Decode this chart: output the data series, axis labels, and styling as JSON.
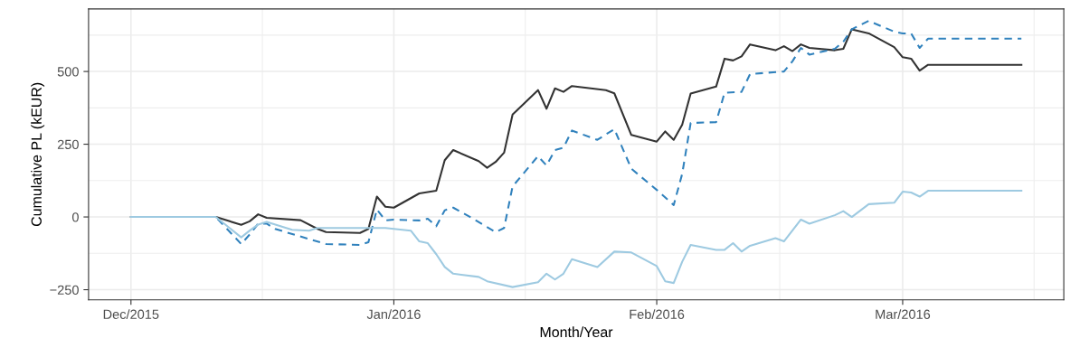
{
  "chart_data": {
    "type": "line",
    "xlabel": "Month/Year",
    "ylabel": "Cumulative PL (kEUR)",
    "xlim": [
      "2015-11-26",
      "2016-03-20"
    ],
    "ylim": [
      -285,
      715
    ],
    "xticks": [
      {
        "value": "2015-12-01",
        "label": "Dec/2015"
      },
      {
        "value": "2015-12-16T12:00",
        "label": null
      },
      {
        "value": "2016-01-01",
        "label": "Jan/2016"
      },
      {
        "value": "2016-01-16T12:00",
        "label": null
      },
      {
        "value": "2016-02-01",
        "label": "Feb/2016"
      },
      {
        "value": "2016-02-15T12:00",
        "label": null
      },
      {
        "value": "2016-03-01",
        "label": "Mar/2016"
      },
      {
        "value": "2016-03-16T12:00",
        "label": null
      }
    ],
    "yticks": [
      {
        "value": -250,
        "label": "−250"
      },
      {
        "value": -125,
        "label": null
      },
      0,
      {
        "value": 125,
        "label": null
      },
      250,
      {
        "value": 375,
        "label": null
      },
      500,
      {
        "value": 625,
        "label": null
      }
    ],
    "grid": true,
    "series": [
      {
        "color": "#333333",
        "line_style": "solid",
        "x": [
          "2015-12-01",
          "2015-12-11",
          "2015-12-14",
          "2015-12-15",
          "2015-12-16",
          "2015-12-17",
          "2015-12-21",
          "2015-12-23",
          "2015-12-24",
          "2015-12-28",
          "2015-12-29",
          "2015-12-30",
          "2015-12-31",
          "2016-01-01",
          "2016-01-04",
          "2016-01-06",
          "2016-01-07",
          "2016-01-08",
          "2016-01-11",
          "2016-01-12",
          "2016-01-13",
          "2016-01-14",
          "2016-01-15",
          "2016-01-18",
          "2016-01-19",
          "2016-01-20",
          "2016-01-21",
          "2016-01-22",
          "2016-01-26",
          "2016-01-27",
          "2016-01-29",
          "2016-02-01",
          "2016-02-02",
          "2016-02-03",
          "2016-02-04",
          "2016-02-05",
          "2016-02-08",
          "2016-02-09",
          "2016-02-10",
          "2016-02-11",
          "2016-02-12",
          "2016-02-15",
          "2016-02-16",
          "2016-02-17",
          "2016-02-18",
          "2016-02-19",
          "2016-02-22",
          "2016-02-23",
          "2016-02-24",
          "2016-02-26",
          "2016-02-29",
          "2016-03-01",
          "2016-03-02",
          "2016-03-03",
          "2016-03-04",
          "2016-03-15"
        ],
        "values": [
          0,
          0,
          -27,
          -15,
          9,
          -3,
          -11,
          -41,
          -52,
          -55,
          -41,
          70,
          35,
          32,
          81,
          90,
          195,
          230,
          192,
          169,
          189,
          221,
          352,
          436,
          372,
          442,
          430,
          450,
          436,
          425,
          282,
          259,
          294,
          265,
          317,
          424,
          448,
          544,
          538,
          552,
          593,
          573,
          587,
          570,
          593,
          581,
          573,
          578,
          645,
          631,
          584,
          549,
          544,
          503,
          523,
          523
        ]
      },
      {
        "color": "#3182bd",
        "line_style": "dashed",
        "x": [
          "2015-12-01",
          "2015-12-11",
          "2015-12-14",
          "2015-12-15",
          "2015-12-16",
          "2015-12-17",
          "2015-12-18",
          "2015-12-22",
          "2015-12-24",
          "2015-12-28",
          "2015-12-29",
          "2015-12-30",
          "2015-12-31",
          "2016-01-01",
          "2016-01-04",
          "2016-01-05",
          "2016-01-06",
          "2016-01-07",
          "2016-01-08",
          "2016-01-10",
          "2016-01-13",
          "2016-01-14",
          "2016-01-15",
          "2016-01-18",
          "2016-01-19",
          "2016-01-20",
          "2016-01-21",
          "2016-01-22",
          "2016-01-25",
          "2016-01-27",
          "2016-01-29",
          "2016-02-01",
          "2016-02-03",
          "2016-02-04",
          "2016-02-05",
          "2016-02-08",
          "2016-02-09",
          "2016-02-11",
          "2016-02-12",
          "2016-02-16",
          "2016-02-17",
          "2016-02-18",
          "2016-02-19",
          "2016-02-22",
          "2016-02-23",
          "2016-02-24",
          "2016-02-26",
          "2016-02-29",
          "2016-03-01",
          "2016-03-02",
          "2016-03-03",
          "2016-03-04",
          "2016-03-15"
        ],
        "values": [
          0,
          0,
          -93,
          -60,
          -23,
          -23,
          -41,
          -76,
          -93,
          -96,
          -87,
          26,
          -12,
          -9,
          -12,
          -6,
          -32,
          23,
          32,
          0,
          -52,
          -38,
          105,
          209,
          177,
          230,
          238,
          297,
          265,
          302,
          166,
          93,
          41,
          148,
          323,
          326,
          427,
          430,
          491,
          500,
          535,
          581,
          558,
          578,
          602,
          645,
          674,
          637,
          631,
          631,
          581,
          613,
          613
        ]
      },
      {
        "color": "#9ecae1",
        "line_style": "solid",
        "x": [
          "2015-12-01",
          "2015-12-11",
          "2015-12-14",
          "2015-12-15",
          "2015-12-16",
          "2015-12-17",
          "2015-12-20",
          "2015-12-22",
          "2015-12-23",
          "2015-12-29",
          "2015-12-31",
          "2016-01-01",
          "2016-01-03",
          "2016-01-04",
          "2016-01-05",
          "2016-01-06",
          "2016-01-07",
          "2016-01-08",
          "2016-01-11",
          "2016-01-12",
          "2016-01-15",
          "2016-01-18",
          "2016-01-19",
          "2016-01-20",
          "2016-01-21",
          "2016-01-22",
          "2016-01-25",
          "2016-01-27",
          "2016-01-29",
          "2016-02-01",
          "2016-02-02",
          "2016-02-03",
          "2016-02-04",
          "2016-02-05",
          "2016-02-08",
          "2016-02-09",
          "2016-02-10",
          "2016-02-11",
          "2016-02-12",
          "2016-02-15",
          "2016-02-16",
          "2016-02-18",
          "2016-02-19",
          "2016-02-22",
          "2016-02-23",
          "2016-02-24",
          "2016-02-26",
          "2016-02-29",
          "2016-03-01",
          "2016-03-02",
          "2016-03-03",
          "2016-03-04",
          "2016-03-15"
        ],
        "values": [
          0,
          0,
          -70,
          -47,
          -26,
          -17,
          -44,
          -47,
          -38,
          -38,
          -38,
          -41,
          -47,
          -84,
          -90,
          -128,
          -172,
          -195,
          -206,
          -221,
          -241,
          -224,
          -195,
          -215,
          -195,
          -145,
          -172,
          -119,
          -122,
          -169,
          -221,
          -227,
          -154,
          -96,
          -113,
          -113,
          -90,
          -119,
          -99,
          -73,
          -84,
          -9,
          -23,
          6,
          20,
          0,
          44,
          49,
          87,
          84,
          70,
          90,
          90
        ]
      }
    ]
  }
}
